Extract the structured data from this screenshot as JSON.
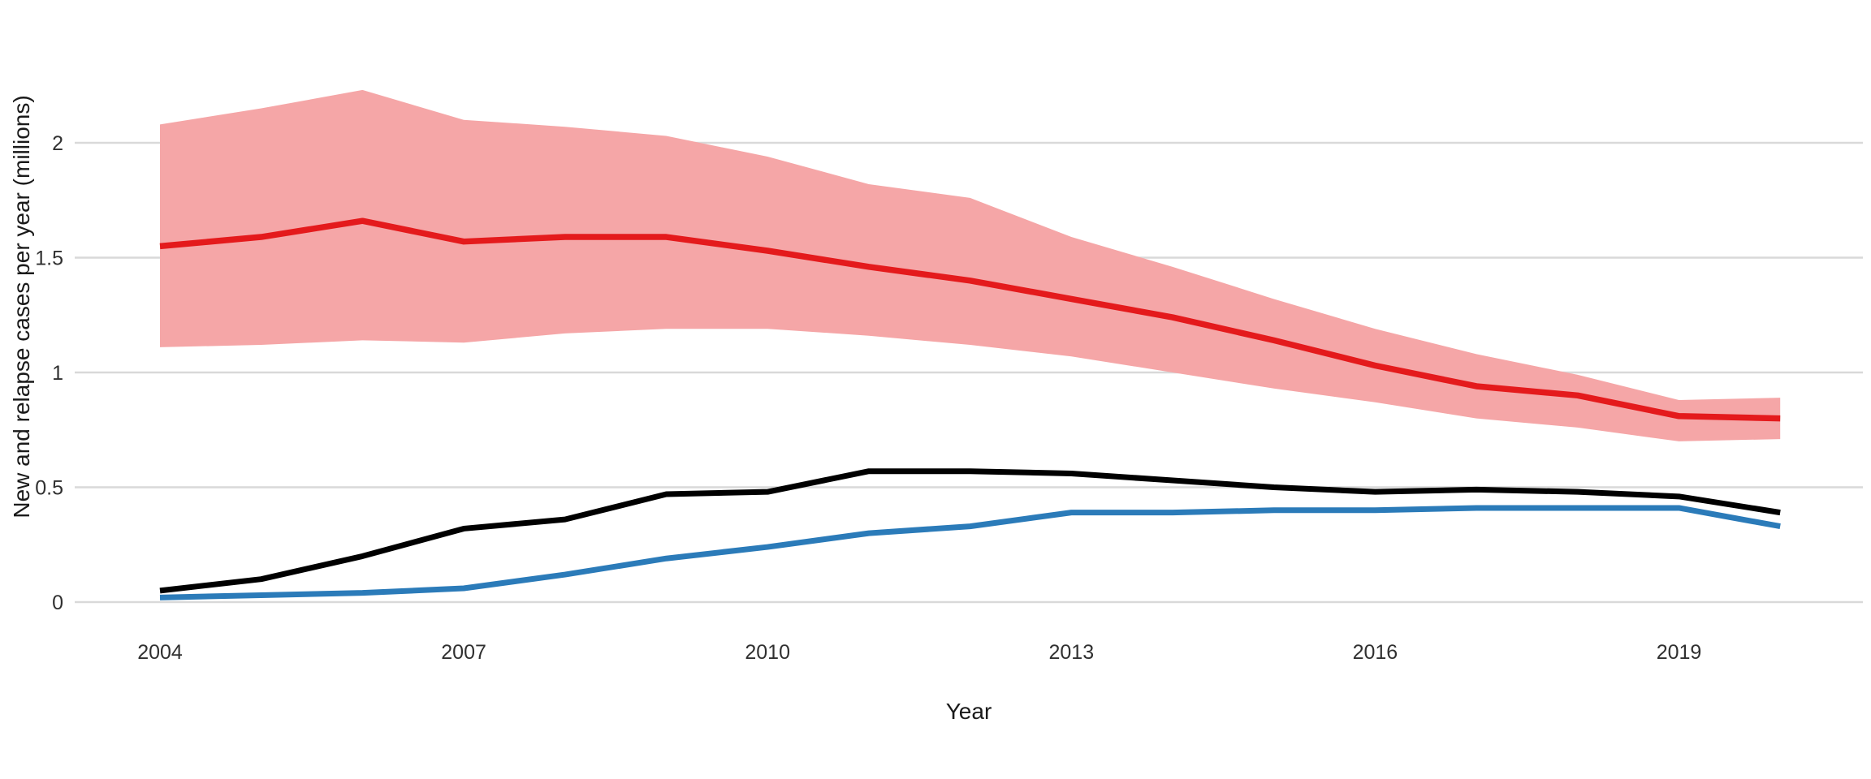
{
  "figure": {
    "background": "#ffffff",
    "x_axis_title": "Year",
    "y_axis_title": "New and relapse cases per year (millions)",
    "x_ticks": [
      "2004",
      "2007",
      "2010",
      "2013",
      "2016",
      "2019"
    ],
    "y_ticks": [
      "0",
      "0.5",
      "1",
      "1.5",
      "2"
    ]
  },
  "chart_data": {
    "type": "line",
    "title": "",
    "xlabel": "Year",
    "ylabel": "New and relapse cases per year (millions)",
    "grid": "horizontal gridlines only, light gray, no axis lines, no legend",
    "legend": "none",
    "xlim": [
      2004,
      2020
    ],
    "ylim": [
      0,
      2.35
    ],
    "x": [
      2004,
      2005,
      2006,
      2007,
      2008,
      2009,
      2010,
      2011,
      2012,
      2013,
      2014,
      2015,
      2016,
      2017,
      2018,
      2019,
      2020
    ],
    "x_tick_years": [
      2004,
      2007,
      2010,
      2013,
      2016,
      2019
    ],
    "y_tick_values": [
      0,
      0.5,
      1,
      1.5,
      2
    ],
    "gridline_color": "#d9d9d9",
    "tick_label_color": "#303030",
    "axis_title_color": "#1a1a1a",
    "series": [
      {
        "name": "red-line-estimate",
        "color": "#e41a1c",
        "stroke_width": 7.5,
        "values": [
          1.55,
          1.59,
          1.66,
          1.57,
          1.59,
          1.59,
          1.53,
          1.46,
          1.4,
          1.32,
          1.24,
          1.14,
          1.03,
          0.94,
          0.9,
          0.81,
          0.8
        ],
        "band": {
          "name": "uncertainty-band",
          "color": "#f5a6a7",
          "upper": [
            2.08,
            2.15,
            2.23,
            2.1,
            2.07,
            2.03,
            1.94,
            1.82,
            1.76,
            1.59,
            1.46,
            1.32,
            1.19,
            1.08,
            0.99,
            0.88,
            0.89
          ],
          "lower": [
            1.11,
            1.12,
            1.14,
            1.13,
            1.17,
            1.19,
            1.19,
            1.16,
            1.12,
            1.07,
            1.0,
            0.93,
            0.87,
            0.8,
            0.76,
            0.7,
            0.71
          ]
        }
      },
      {
        "name": "black-line",
        "color": "#000000",
        "stroke_width": 7,
        "values": [
          0.05,
          0.1,
          0.2,
          0.32,
          0.36,
          0.47,
          0.48,
          0.57,
          0.57,
          0.56,
          0.53,
          0.5,
          0.48,
          0.49,
          0.48,
          0.46,
          0.39
        ]
      },
      {
        "name": "blue-line",
        "color": "#2b7bb9",
        "stroke_width": 7,
        "values": [
          0.02,
          0.03,
          0.04,
          0.06,
          0.12,
          0.19,
          0.24,
          0.3,
          0.33,
          0.39,
          0.39,
          0.4,
          0.4,
          0.41,
          0.41,
          0.41,
          0.33
        ]
      }
    ]
  }
}
